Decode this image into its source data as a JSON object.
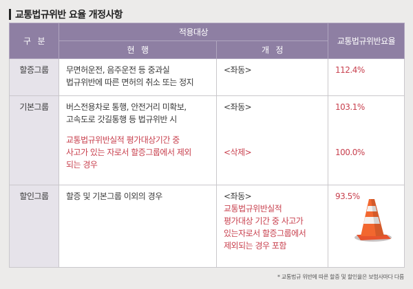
{
  "title": "교통법규위반 요율 개정사항",
  "header": {
    "category": "구   분",
    "target": "적용대상",
    "current": "현   행",
    "revised": "개   정",
    "rate": "교통법규위반요율"
  },
  "rows": [
    {
      "category": "할증그룹",
      "current": "무면허운전, 음주운전 등 중과실\n법규위반에 따른 면허의 취소 또는 정지",
      "revised": "<좌동>",
      "rate": "112.4%"
    },
    {
      "category": "기본그룹",
      "current": "버스전용차로 통행, 안전거리 미확보,\n고속도로 갓길통행 등 법규위반 시",
      "revised": "<좌동>",
      "rate": "103.1%",
      "sub": {
        "current": "교통법규위반실적 평가대상기간 중\n사고가 있는 자로서 할증그룹에서 제외\n되는 경우",
        "revised": "<삭제>",
        "rate": "100.0%"
      }
    },
    {
      "category": "할인그룹",
      "current": "할증 및 기본그룹 이외의 경우",
      "revised": "<좌동>",
      "revised_note": "교통법규위반실적\n평가대상 기간 중 사고가\n있는자로서 할증그룹에서\n제외되는 경우 포함",
      "rate": "93.5%"
    }
  ],
  "footnote": "* 교통법규 위반에 따른 할증 및 할인율은 보험사마다 다름",
  "icons": [
    "traffic-cone-icon"
  ],
  "colors": {
    "header_bg": "#8e7fa3",
    "category_bg": "#e6e3ea",
    "accent_red": "#c8404e",
    "page_bg": "#ecebea"
  }
}
